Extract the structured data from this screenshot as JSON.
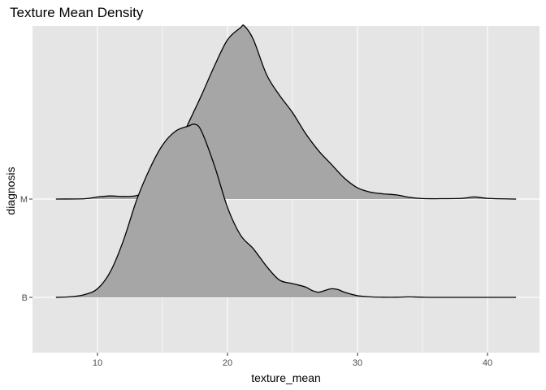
{
  "chart_data": {
    "type": "ridgeline-density",
    "title": "Texture Mean Density",
    "xlabel": "texture_mean",
    "ylabel": "diagnosis",
    "x_ticks": [
      10,
      20,
      30,
      40
    ],
    "xlim": [
      5,
      44
    ],
    "categories": [
      "B",
      "M"
    ],
    "background": "#e5e5e5",
    "grid": true,
    "grid_color": "#ffffff",
    "fill_color": "#a6a6a6",
    "line_color": "#000000",
    "series": [
      {
        "name": "B",
        "points": [
          [
            6.8,
            0.0
          ],
          [
            8,
            0.004
          ],
          [
            9,
            0.016
          ],
          [
            10,
            0.05
          ],
          [
            11,
            0.15
          ],
          [
            12,
            0.33
          ],
          [
            13,
            0.56
          ],
          [
            14,
            0.74
          ],
          [
            15,
            0.88
          ],
          [
            16,
            0.96
          ],
          [
            17,
            0.99
          ],
          [
            17.5,
            1.0
          ],
          [
            18,
            0.96
          ],
          [
            19,
            0.76
          ],
          [
            20,
            0.52
          ],
          [
            21,
            0.36
          ],
          [
            22,
            0.28
          ],
          [
            23,
            0.18
          ],
          [
            24,
            0.1
          ],
          [
            25,
            0.08
          ],
          [
            26,
            0.06
          ],
          [
            26.5,
            0.04
          ],
          [
            27,
            0.03
          ],
          [
            27.5,
            0.04
          ],
          [
            28,
            0.05
          ],
          [
            28.5,
            0.045
          ],
          [
            29,
            0.03
          ],
          [
            30,
            0.01
          ],
          [
            31,
            0.003
          ],
          [
            32,
            0.001
          ],
          [
            33,
            0.001
          ],
          [
            34,
            0.003
          ],
          [
            35,
            0.001
          ],
          [
            37,
            0.0
          ],
          [
            42.2,
            0.0
          ]
        ]
      },
      {
        "name": "M",
        "points": [
          [
            6.8,
            0.0
          ],
          [
            9,
            0.002
          ],
          [
            10,
            0.012
          ],
          [
            11,
            0.018
          ],
          [
            12,
            0.015
          ],
          [
            13,
            0.02
          ],
          [
            14,
            0.05
          ],
          [
            15,
            0.14
          ],
          [
            16,
            0.28
          ],
          [
            17,
            0.44
          ],
          [
            18,
            0.6
          ],
          [
            19,
            0.77
          ],
          [
            20,
            0.92
          ],
          [
            21,
            0.99
          ],
          [
            21.3,
            1.0
          ],
          [
            22,
            0.92
          ],
          [
            23,
            0.72
          ],
          [
            24,
            0.6
          ],
          [
            25,
            0.5
          ],
          [
            26,
            0.38
          ],
          [
            27,
            0.28
          ],
          [
            28,
            0.2
          ],
          [
            29,
            0.12
          ],
          [
            30,
            0.065
          ],
          [
            31,
            0.04
          ],
          [
            32,
            0.03
          ],
          [
            33,
            0.024
          ],
          [
            34,
            0.01
          ],
          [
            35,
            0.003
          ],
          [
            36,
            0.002
          ],
          [
            38,
            0.004
          ],
          [
            39,
            0.012
          ],
          [
            40,
            0.004
          ],
          [
            42.2,
            0.0
          ]
        ]
      }
    ]
  }
}
